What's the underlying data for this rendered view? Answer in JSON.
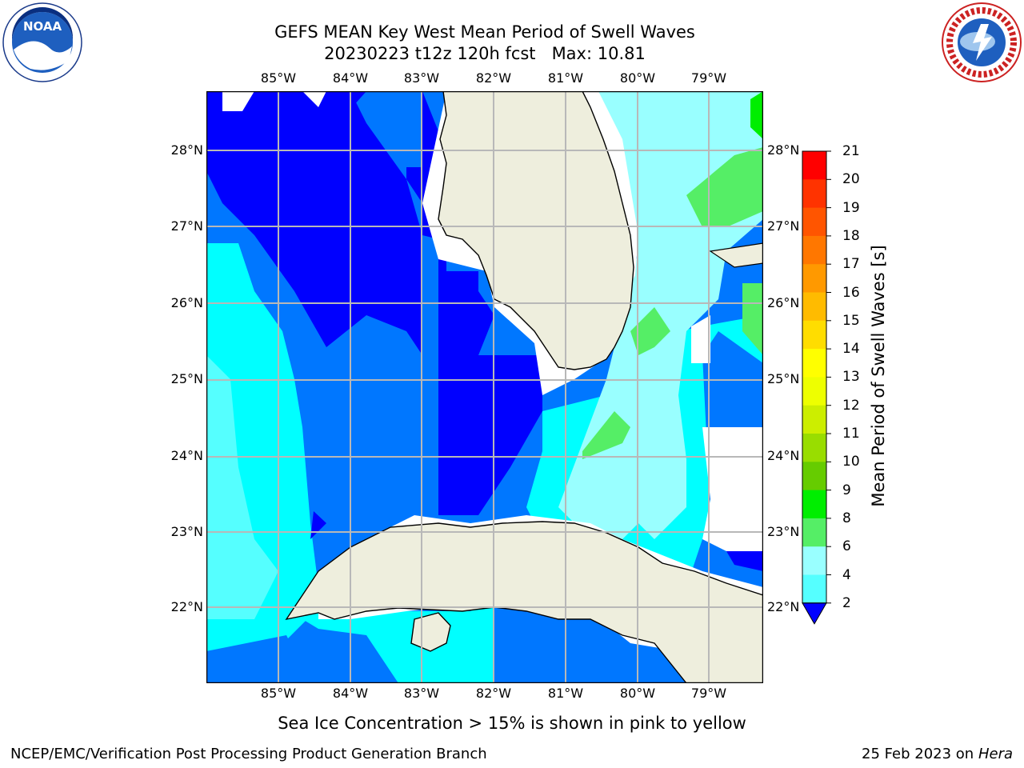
{
  "header": {
    "title_line1": "GEFS MEAN Key West Mean Period of Swell Waves",
    "title_line2": "20230223 t12z 120h fcst   Max: 10.81"
  },
  "logos": {
    "left": "noaa-logo",
    "right": "national-weather-service-logo",
    "right_text": "NATIONAL WEATHER SERVICE"
  },
  "map": {
    "lon_labels": [
      "85°W",
      "84°W",
      "83°W",
      "82°W",
      "81°W",
      "80°W",
      "79°W"
    ],
    "lat_labels": [
      "28°N",
      "27°N",
      "26°N",
      "25°N",
      "24°N",
      "23°N",
      "22°N"
    ],
    "land_color": "#eeeedd",
    "ocean_colors": {
      "deep_blue": "#0000ff",
      "blue": "#0077ff",
      "cyan": "#00ffff",
      "light_cyan": "#55ffff",
      "pale_cyan": "#99ffff",
      "light_green": "#55ee66",
      "green": "#00ee00"
    }
  },
  "colorbar": {
    "label": "Mean Period of Swell Waves [s]",
    "ticks": [
      "21",
      "20",
      "19",
      "18",
      "17",
      "16",
      "15",
      "14",
      "13",
      "12",
      "11",
      "10",
      "9",
      "8",
      "6",
      "4",
      "2"
    ],
    "colors": [
      "#ff0000",
      "#ff3300",
      "#ff5500",
      "#ff7700",
      "#ff9900",
      "#ffbb00",
      "#ffdd00",
      "#ffff00",
      "#eeff00",
      "#ccee00",
      "#99dd00",
      "#66cc00",
      "#00ee00",
      "#55ee66",
      "#99ffff",
      "#55ffff",
      "#00ffff",
      "#0077ff",
      "#0000ff"
    ]
  },
  "footer": {
    "note": "Sea Ice Concentration > 15% is shown in pink to yellow",
    "branch": "NCEP/EMC/Verification Post Processing Product Generation Branch",
    "date": "25 Feb 2023 on",
    "host": "Hera"
  }
}
